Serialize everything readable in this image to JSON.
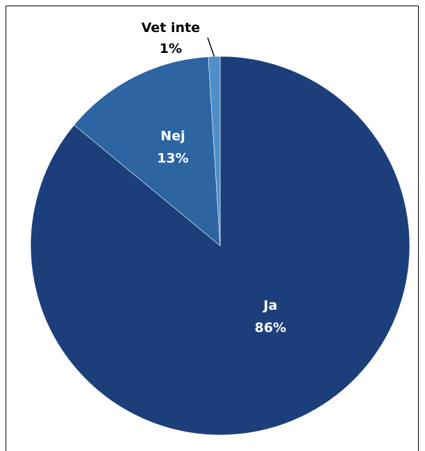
{
  "chart_data": {
    "type": "pie",
    "title": "",
    "slices": [
      {
        "label": "Ja",
        "value": 86,
        "value_label": "86%",
        "color": "#1c3f7c",
        "label_color": "#ffffff"
      },
      {
        "label": "Nej",
        "value": 13,
        "value_label": "13%",
        "color": "#2d64a2",
        "label_color": "#ffffff"
      },
      {
        "label": "Vet inte",
        "value": 1,
        "value_label": "1%",
        "color": "#4f8fc9",
        "label_color": "#000000"
      }
    ],
    "start_angle_deg": 0,
    "direction": "clockwise",
    "legend": "none"
  }
}
